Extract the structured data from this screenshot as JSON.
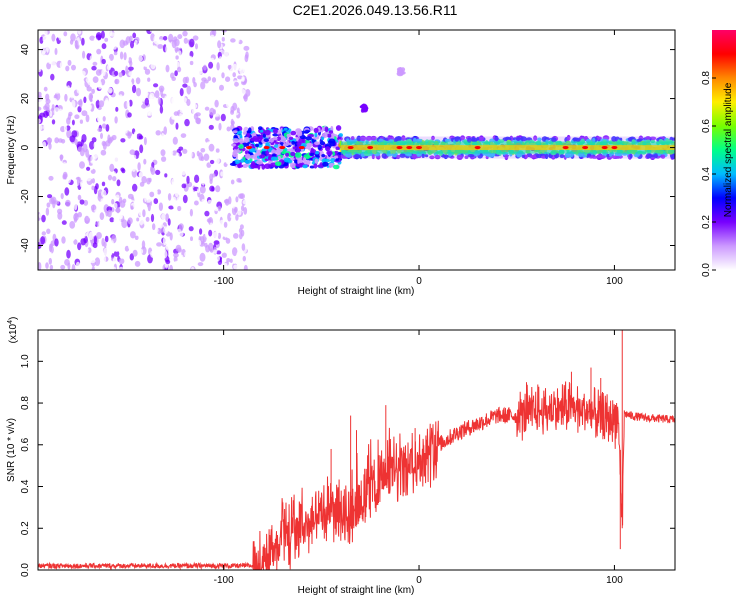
{
  "title": "C2E1.2026.049.13.56.R11",
  "colors": {
    "snr_line": "#ee3333",
    "axis": "#000000",
    "background": "#ffffff",
    "colormap": [
      "#ffffff",
      "#cc99ff",
      "#7700ff",
      "#0000ff",
      "#00bbff",
      "#00ff88",
      "#77ff00",
      "#ffee00",
      "#ff8800",
      "#ff0000",
      "#ff0066"
    ]
  },
  "chart_data": [
    {
      "type": "heatmap",
      "name": "spectrogram",
      "xlabel": "Height of straight line (km)",
      "ylabel": "Frequency (Hz)",
      "xlim": [
        -195,
        131
      ],
      "ylim": [
        -50,
        48
      ],
      "xticks": [
        -100,
        0,
        100
      ],
      "xtick_labels": [
        "-100",
        "0",
        "100"
      ],
      "yticks": [
        -40,
        -20,
        0,
        20,
        40
      ],
      "ytick_labels": [
        "-40",
        "-20",
        "0",
        "20",
        "40"
      ],
      "colorbar": {
        "label": "Normalized spectral amplitude",
        "range": [
          0,
          1
        ],
        "ticks": [
          0.0,
          0.2,
          0.4,
          0.6,
          0.8
        ],
        "tick_labels": [
          "0.0",
          "0.2",
          "0.4",
          "0.6",
          "0.8"
        ]
      },
      "regions": [
        {
          "description": "noise",
          "x_range": [
            -195,
            -87
          ],
          "freq_range": [
            -50,
            48
          ],
          "amplitude": [
            0.0,
            0.2
          ]
        },
        {
          "description": "onset burst",
          "x_range": [
            -95,
            -40
          ],
          "freq_range": [
            -8,
            8
          ],
          "amplitude": [
            0.1,
            0.5
          ]
        },
        {
          "description": "signal band",
          "x_range": [
            -40,
            131
          ],
          "freq_range": [
            -4,
            4
          ],
          "amplitude": [
            0.2,
            1.0
          ]
        },
        {
          "description": "isolated blip",
          "x_range": [
            -29,
            -27
          ],
          "freq_range": [
            14,
            17
          ],
          "amplitude": [
            0.15,
            0.25
          ]
        },
        {
          "description": "isolated blip",
          "x_range": [
            -10,
            -8
          ],
          "freq_range": [
            30,
            32
          ],
          "amplitude": [
            0.05,
            0.1
          ]
        }
      ],
      "peak_centers_x": [
        -87,
        -78,
        -70,
        -60,
        -35,
        -25,
        -10,
        -5,
        0,
        30,
        75,
        85,
        95,
        100
      ]
    },
    {
      "type": "line",
      "name": "snr",
      "xlabel": "Height of straight line (km)",
      "ylabel": "SNR (10 * v/v)",
      "yscale_label": "(x10",
      "yscale_exponent": "4",
      "xlim": [
        -195,
        131
      ],
      "ylim": [
        0,
        1.15
      ],
      "xticks": [
        -100,
        0,
        100
      ],
      "xtick_labels": [
        "-100",
        "0",
        "100"
      ],
      "yticks": [
        0.0,
        0.2,
        0.4,
        0.6,
        0.8,
        1.0
      ],
      "ytick_labels": [
        "0.0",
        "0.2",
        "0.4",
        "0.6",
        "0.8",
        "1.0"
      ],
      "series": [
        {
          "name": "SNR",
          "x": [
            -195,
            -150,
            -100,
            -85,
            -80,
            -75,
            -70,
            -65,
            -60,
            -55,
            -50,
            -45,
            -40,
            -35,
            -30,
            -25,
            -20,
            -15,
            -10,
            -5,
            0,
            5,
            10,
            20,
            30,
            40,
            50,
            55,
            60,
            70,
            80,
            90,
            95,
            100,
            102,
            103,
            104,
            105,
            108,
            115,
            131
          ],
          "values": [
            0.02,
            0.02,
            0.02,
            0.02,
            0.04,
            0.1,
            0.16,
            0.2,
            0.22,
            0.24,
            0.25,
            0.3,
            0.3,
            0.3,
            0.35,
            0.38,
            0.45,
            0.45,
            0.48,
            0.5,
            0.52,
            0.56,
            0.6,
            0.66,
            0.7,
            0.74,
            0.74,
            0.75,
            0.76,
            0.77,
            0.78,
            0.74,
            0.72,
            0.73,
            0.72,
            0.5,
            0.2,
            0.75,
            0.74,
            0.73,
            0.72
          ]
        }
      ],
      "spikes": [
        {
          "x": -45,
          "y": 0.58
        },
        {
          "x": -35,
          "y": 0.74
        },
        {
          "x": -32,
          "y": 0.67
        },
        {
          "x": -17,
          "y": 0.79
        },
        {
          "x": -2,
          "y": 0.68
        },
        {
          "x": 55,
          "y": 0.9
        },
        {
          "x": 78,
          "y": 0.95
        },
        {
          "x": 88,
          "y": 0.97
        },
        {
          "x": 93,
          "y": 0.92
        },
        {
          "x": 104,
          "y": 1.15
        },
        {
          "x": 103,
          "y": 0.1
        }
      ]
    }
  ]
}
